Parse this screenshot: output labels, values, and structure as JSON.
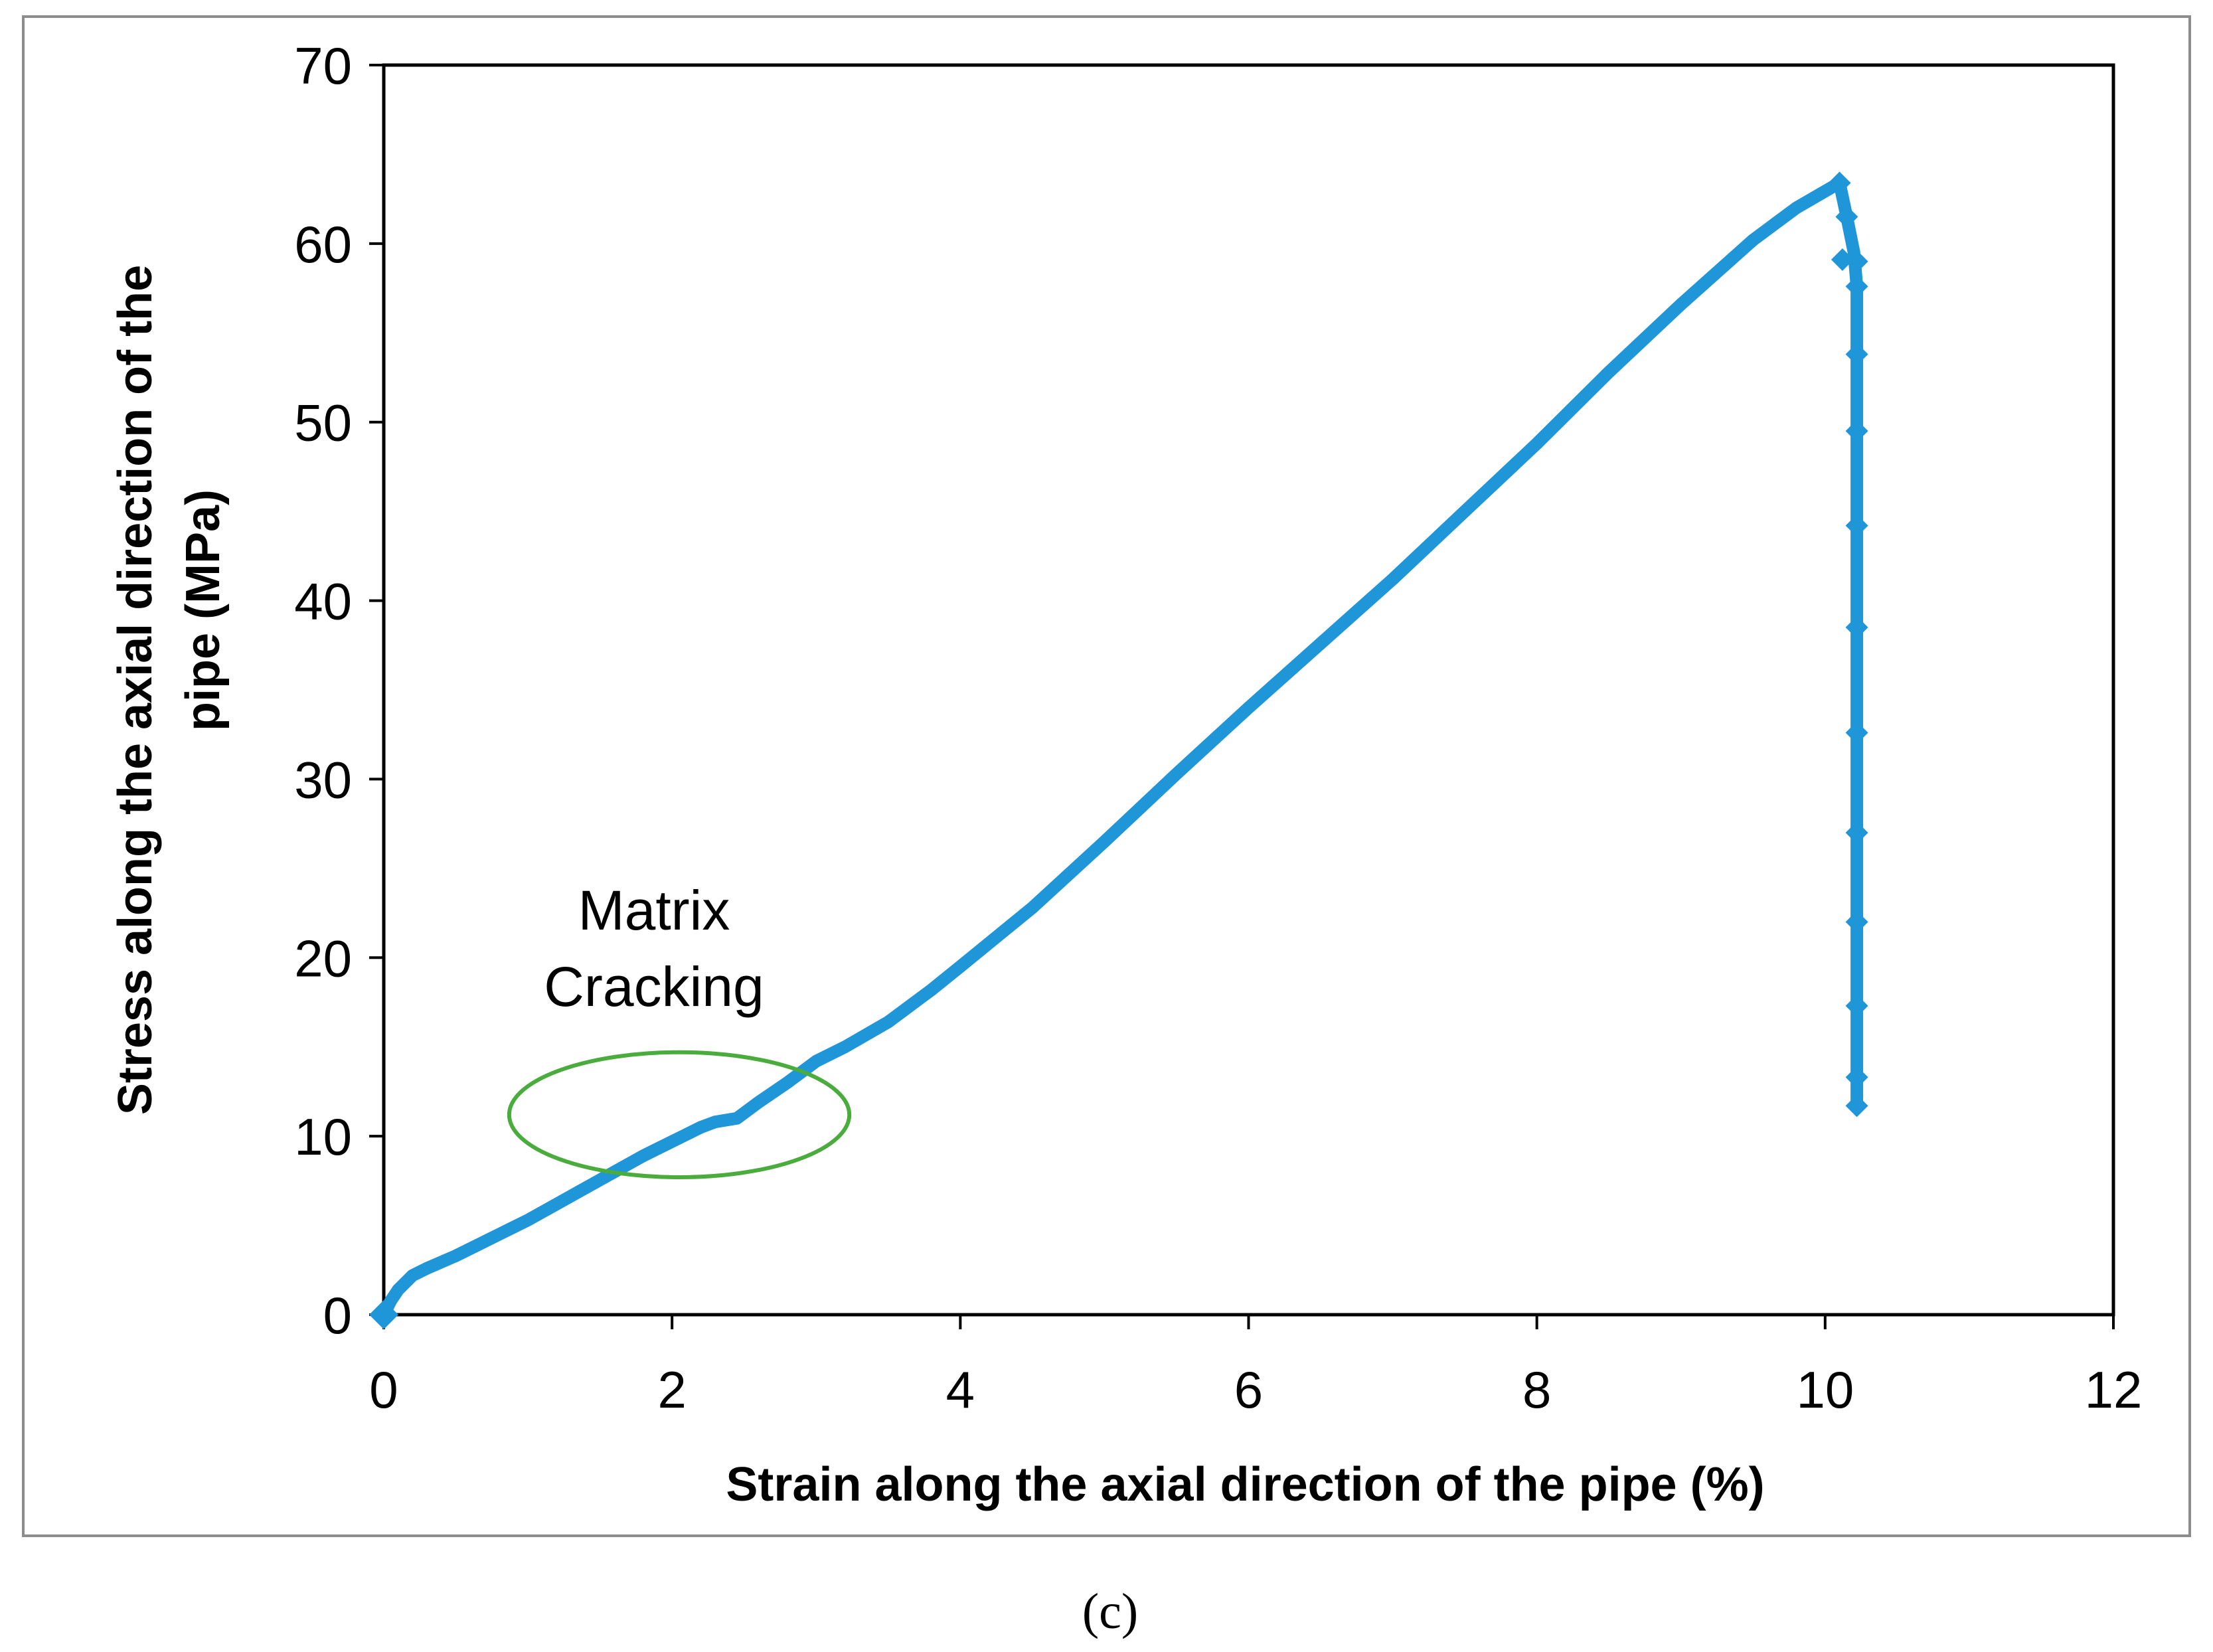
{
  "chart_data": {
    "type": "line",
    "title": "",
    "xlabel": "Strain along the axial direction of the pipe  (%)",
    "ylabel_lines": [
      "Stress along the axial direction of the",
      "pipe (MPa)"
    ],
    "xlim": [
      0,
      12
    ],
    "ylim": [
      0,
      70
    ],
    "xticks": [
      0,
      2,
      4,
      6,
      8,
      10,
      12
    ],
    "yticks": [
      0,
      10,
      20,
      30,
      40,
      50,
      60,
      70
    ],
    "grid": false,
    "legend": "none",
    "series_color": "#1f96d8",
    "annotation_color": "#4aac3c",
    "series": [
      {
        "points": [
          [
            0.0,
            0.0
          ],
          [
            0.05,
            0.8
          ],
          [
            0.1,
            1.4
          ],
          [
            0.2,
            2.2
          ],
          [
            0.3,
            2.6
          ],
          [
            0.5,
            3.3
          ],
          [
            0.8,
            4.5
          ],
          [
            1.0,
            5.3
          ],
          [
            1.2,
            6.2
          ],
          [
            1.4,
            7.1
          ],
          [
            1.6,
            8.0
          ],
          [
            1.8,
            8.9
          ],
          [
            2.0,
            9.7
          ],
          [
            2.2,
            10.5
          ],
          [
            2.3,
            10.8
          ],
          [
            2.45,
            11.0
          ],
          [
            2.6,
            11.9
          ],
          [
            2.8,
            13.0
          ],
          [
            3.0,
            14.2
          ],
          [
            3.2,
            15.0
          ],
          [
            3.5,
            16.4
          ],
          [
            3.8,
            18.2
          ],
          [
            4.0,
            19.5
          ],
          [
            4.5,
            22.8
          ],
          [
            5.0,
            26.5
          ],
          [
            5.5,
            30.3
          ],
          [
            6.0,
            34.0
          ],
          [
            6.5,
            37.6
          ],
          [
            7.0,
            41.2
          ],
          [
            7.5,
            45.0
          ],
          [
            8.0,
            48.8
          ],
          [
            8.5,
            52.8
          ],
          [
            9.0,
            56.6
          ],
          [
            9.5,
            60.2
          ],
          [
            9.8,
            62.0
          ],
          [
            10.1,
            63.4
          ],
          [
            10.15,
            61.5
          ],
          [
            10.2,
            59.5
          ],
          [
            10.22,
            57.6
          ],
          [
            10.22,
            54.0
          ],
          [
            10.22,
            49.5
          ],
          [
            10.22,
            44.3
          ],
          [
            10.22,
            38.5
          ],
          [
            10.22,
            32.6
          ],
          [
            10.22,
            27.0
          ],
          [
            10.22,
            22.0
          ],
          [
            10.22,
            17.3
          ],
          [
            10.22,
            13.3
          ],
          [
            10.22,
            11.7
          ]
        ],
        "marker_points": [
          [
            10.1,
            63.4
          ],
          [
            10.15,
            61.5
          ],
          [
            10.12,
            59.1
          ],
          [
            10.22,
            59.0
          ],
          [
            10.22,
            57.6
          ],
          [
            10.22,
            53.8
          ],
          [
            10.22,
            49.5
          ],
          [
            10.22,
            44.2
          ],
          [
            10.22,
            38.5
          ],
          [
            10.22,
            32.6
          ],
          [
            10.22,
            27.0
          ],
          [
            10.22,
            22.0
          ],
          [
            10.22,
            17.3
          ],
          [
            10.22,
            13.3
          ],
          [
            10.22,
            11.7
          ]
        ]
      }
    ],
    "annotations": [
      {
        "text_lines": [
          "Matrix",
          "Cracking"
        ],
        "ellipse_center": [
          2.05,
          11.2
        ],
        "ellipse_radii": [
          1.18,
          3.5
        ]
      }
    ],
    "caption": "(c)"
  }
}
